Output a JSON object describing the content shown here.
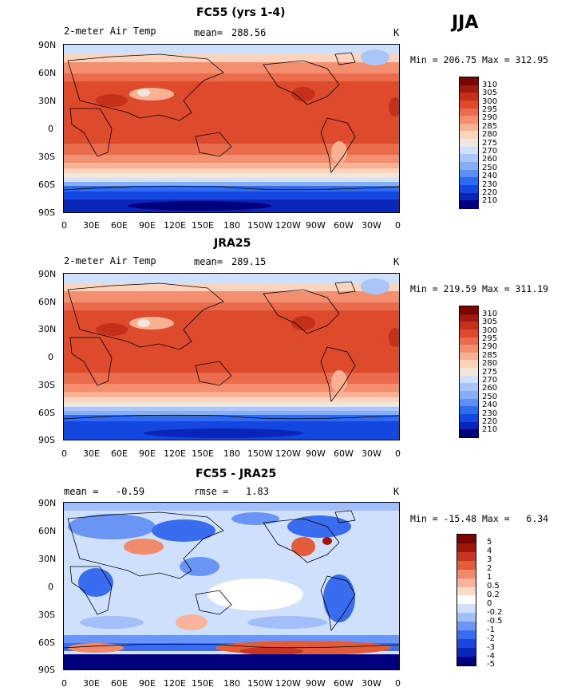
{
  "season_label": "JJA",
  "lat_ticks": [
    "90N",
    "60N",
    "30N",
    "0",
    "30S",
    "60S",
    "90S"
  ],
  "lon_ticks": [
    "0",
    "30E",
    "60E",
    "90E",
    "120E",
    "150E",
    "180",
    "150W",
    "120W",
    "90W",
    "60W",
    "30W",
    "0"
  ],
  "colors": {
    "abs": [
      "#00007f",
      "#0a26b8",
      "#1347e0",
      "#2f6bf0",
      "#5a8ff5",
      "#86aef7",
      "#aac6f9",
      "#cfe0fc",
      "#f1e6dc",
      "#fcd3bc",
      "#f9b193",
      "#f38f6f",
      "#ea6c4c",
      "#de4a2c",
      "#c4301a",
      "#9c1a10",
      "#7a0603"
    ],
    "diff": [
      "#00007f",
      "#0a26b8",
      "#1a47dd",
      "#3a6cf0",
      "#6b95f5",
      "#a3bff9",
      "#cfe0fc",
      "#ffffff",
      "#fdd9c8",
      "#f8b49a",
      "#f08a6a",
      "#e35c3a",
      "#c83520",
      "#a0160c",
      "#7a0603"
    ]
  },
  "panels": [
    {
      "title": "FC55 (yrs 1-4)",
      "variable": "2-meter Air Temp",
      "center_label": "mean=",
      "center_value": "288.56",
      "units": "K",
      "minmax": "Min = 206.75 Max = 312.95",
      "colorbar_labels": [
        "310",
        "305",
        "300",
        "295",
        "290",
        "285",
        "280",
        "275",
        "270",
        "260",
        "250",
        "240",
        "230",
        "220",
        "210"
      ]
    },
    {
      "title": "JRA25",
      "variable": "2-meter Air Temp",
      "center_label": "mean=",
      "center_value": "289.15",
      "units": "K",
      "minmax": "Min = 219.59 Max = 311.19",
      "colorbar_labels": [
        "310",
        "305",
        "300",
        "295",
        "290",
        "285",
        "280",
        "275",
        "270",
        "260",
        "250",
        "240",
        "230",
        "220",
        "210"
      ]
    },
    {
      "title": "FC55 - JRA25",
      "left_stat": "mean =   -0.59",
      "center_label": "rmse =",
      "center_value": "1.83",
      "units": "K",
      "minmax": "Min = -15.48 Max =   6.34",
      "colorbar_labels": [
        "5",
        "4",
        "3",
        "2",
        "1",
        "0.5",
        "0.2",
        "0",
        "-0.2",
        "-0.5",
        "-1",
        "-2",
        "-3",
        "-4",
        "-5"
      ]
    }
  ],
  "chart_data": [
    {
      "type": "heatmap",
      "title": "FC55 (yrs 1-4)",
      "field": "2-meter Air Temp",
      "units": "K",
      "mean": 288.56,
      "min": 206.75,
      "max": 312.95,
      "x_axis": [
        "0",
        "30E",
        "60E",
        "90E",
        "120E",
        "150E",
        "180",
        "150W",
        "120W",
        "90W",
        "60W",
        "30W",
        "0"
      ],
      "y_axis": [
        "90N",
        "60N",
        "30N",
        "0",
        "30S",
        "60S",
        "90S"
      ],
      "contour_levels": [
        210,
        220,
        230,
        240,
        250,
        260,
        270,
        275,
        280,
        285,
        290,
        295,
        300,
        305,
        310
      ]
    },
    {
      "type": "heatmap",
      "title": "JRA25",
      "field": "2-meter Air Temp",
      "units": "K",
      "mean": 289.15,
      "min": 219.59,
      "max": 311.19,
      "x_axis": [
        "0",
        "30E",
        "60E",
        "90E",
        "120E",
        "150E",
        "180",
        "150W",
        "120W",
        "90W",
        "60W",
        "30W",
        "0"
      ],
      "y_axis": [
        "90N",
        "60N",
        "30N",
        "0",
        "30S",
        "60S",
        "90S"
      ],
      "contour_levels": [
        210,
        220,
        230,
        240,
        250,
        260,
        270,
        275,
        280,
        285,
        290,
        295,
        300,
        305,
        310
      ]
    },
    {
      "type": "heatmap",
      "title": "FC55 - JRA25",
      "units": "K",
      "mean": -0.59,
      "rmse": 1.83,
      "min": -15.48,
      "max": 6.34,
      "x_axis": [
        "0",
        "30E",
        "60E",
        "90E",
        "120E",
        "150E",
        "180",
        "150W",
        "120W",
        "90W",
        "60W",
        "30W",
        "0"
      ],
      "y_axis": [
        "90N",
        "60N",
        "30N",
        "0",
        "30S",
        "60S",
        "90S"
      ],
      "contour_levels": [
        -5,
        -4,
        -3,
        -2,
        -1,
        -0.5,
        -0.2,
        0,
        0.2,
        0.5,
        1,
        2,
        3,
        4,
        5
      ]
    }
  ]
}
